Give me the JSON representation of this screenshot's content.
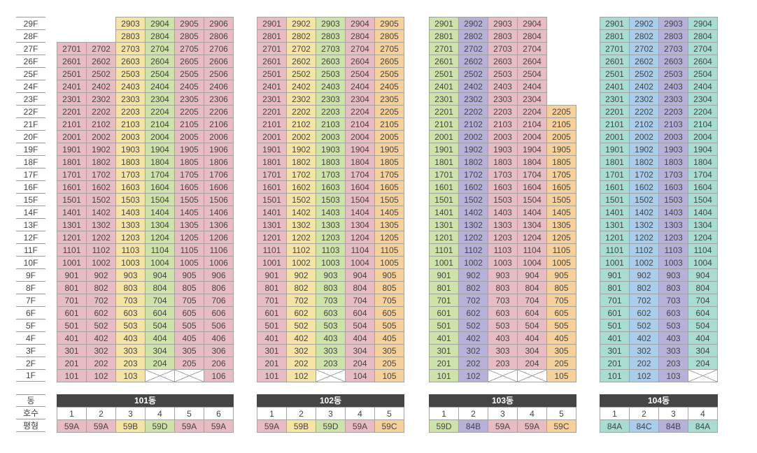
{
  "labels": {
    "dong": "동",
    "hosu": "호수",
    "pyeong": "평형"
  },
  "floors": [
    "29F",
    "28F",
    "27F",
    "26F",
    "25F",
    "24F",
    "23F",
    "22F",
    "21F",
    "20F",
    "19F",
    "18F",
    "17F",
    "16F",
    "15F",
    "14F",
    "13F",
    "12F",
    "11F",
    "10F",
    "9F",
    "8F",
    "7F",
    "6F",
    "5F",
    "4F",
    "3F",
    "2F",
    "1F"
  ],
  "types": {
    "59A": {
      "color": "#e8bcc3"
    },
    "59B": {
      "color": "#f5e4a6"
    },
    "59C": {
      "color": "#f6d19c"
    },
    "59D": {
      "color": "#cde3a9"
    },
    "84A": {
      "color": "#a9dcd2"
    },
    "84B": {
      "color": "#b7b0d9"
    },
    "84C": {
      "color": "#a9cdea"
    }
  },
  "buildings": [
    {
      "name": "101동",
      "line_types": [
        "59A",
        "59A",
        "59B",
        "59D",
        "59A",
        "59A"
      ],
      "lines": [
        1,
        2,
        3,
        4,
        5,
        6
      ],
      "max_floor": [
        27,
        27,
        29,
        29,
        29,
        29
      ],
      "empty_1f": [
        false,
        false,
        false,
        true,
        true,
        false
      ]
    },
    {
      "name": "102동",
      "line_types": [
        "59A",
        "59B",
        "59D",
        "59A",
        "59C"
      ],
      "lines": [
        1,
        2,
        3,
        4,
        5
      ],
      "max_floor": [
        29,
        29,
        29,
        29,
        29
      ],
      "empty_1f": [
        false,
        false,
        true,
        false,
        false
      ]
    },
    {
      "name": "103동",
      "line_types": [
        "59D",
        "84B",
        "59A",
        "59A",
        "59C"
      ],
      "lines": [
        1,
        2,
        3,
        4,
        5
      ],
      "max_floor": [
        29,
        29,
        29,
        29,
        22
      ],
      "empty_1f": [
        false,
        false,
        true,
        true,
        false
      ]
    },
    {
      "name": "104동",
      "line_types": [
        "84A",
        "84C",
        "84B",
        "84A"
      ],
      "lines": [
        1,
        2,
        3,
        4
      ],
      "max_floor": [
        29,
        29,
        29,
        29
      ],
      "empty_1f": [
        false,
        false,
        false,
        true
      ]
    }
  ]
}
